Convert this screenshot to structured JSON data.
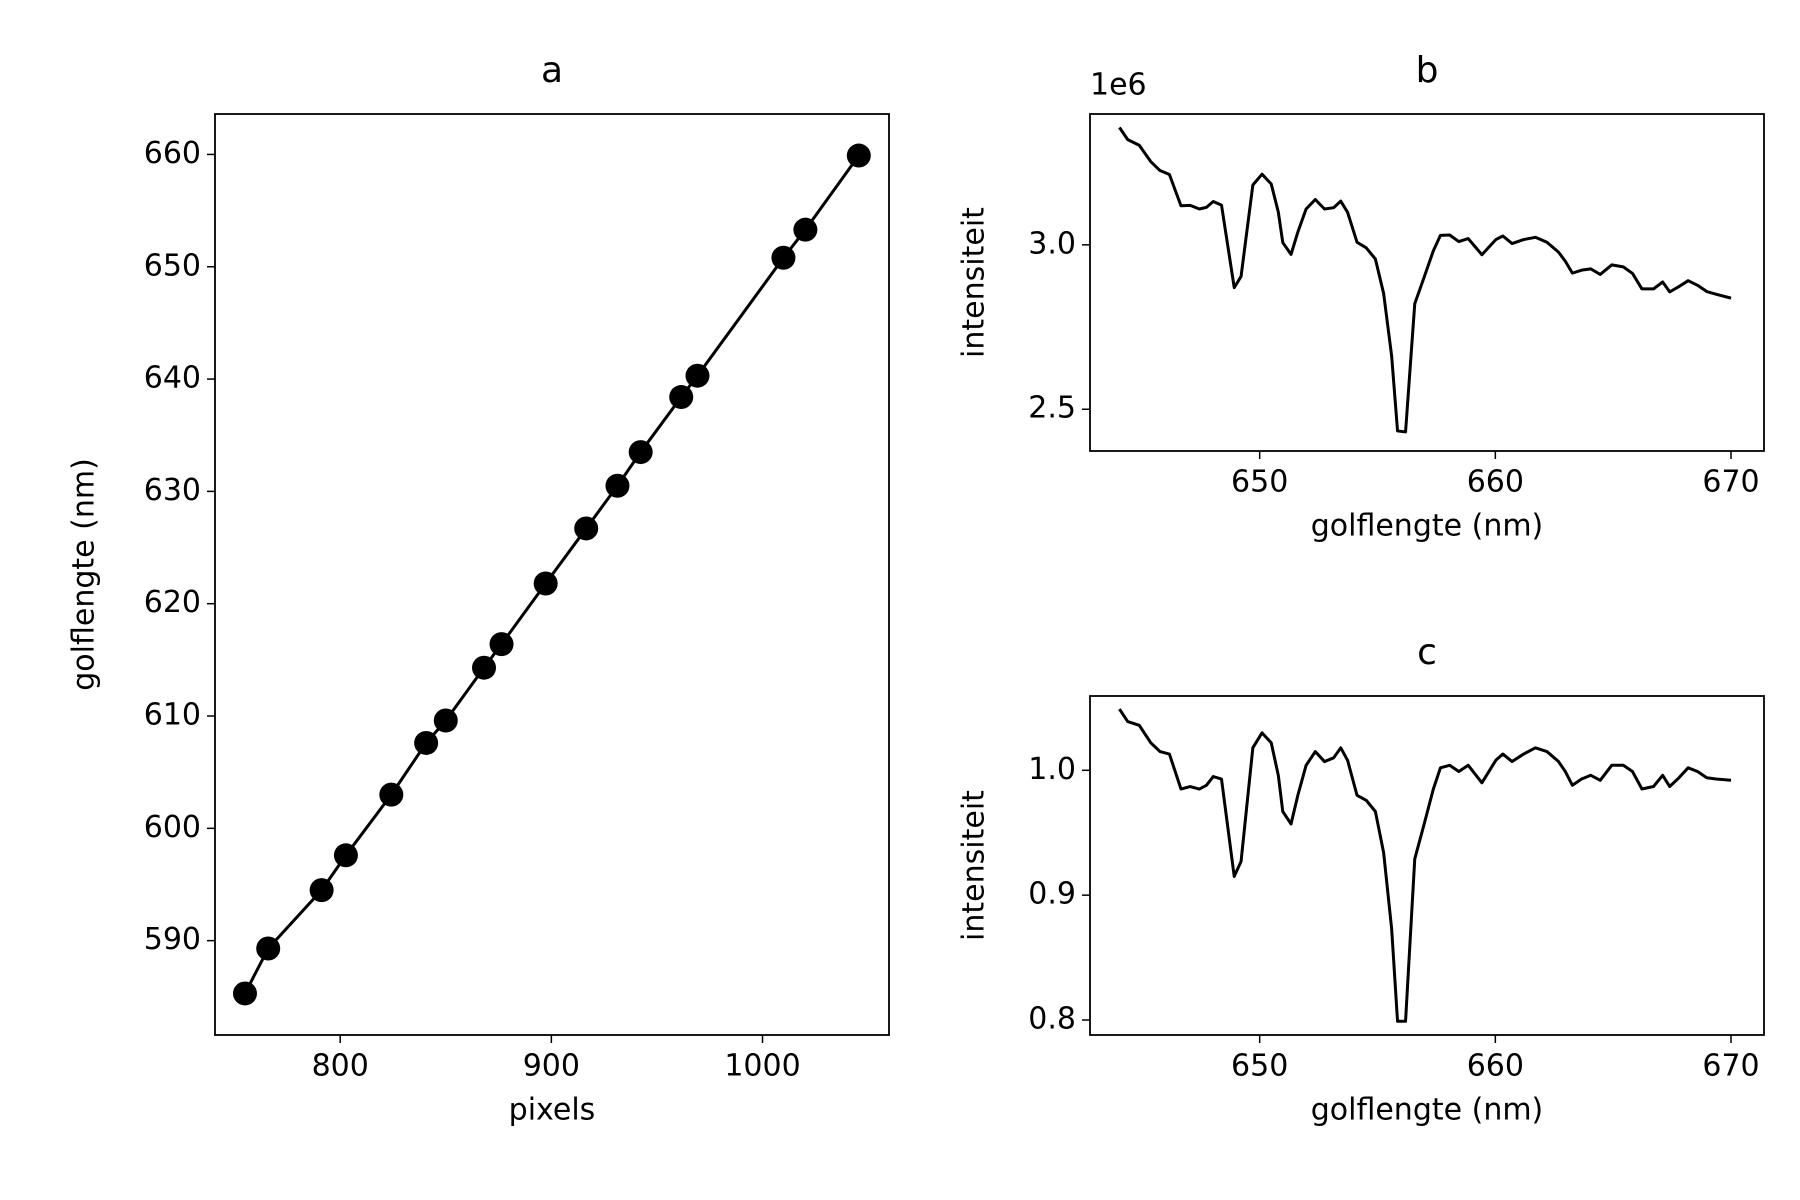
{
  "chart_data": [
    {
      "type": "line",
      "title": "a",
      "xlabel": "pixels",
      "ylabel": "golflengte (nm)",
      "color": "#000000",
      "marker": "o",
      "x": [
        754.9,
        765.9,
        791.2,
        802.7,
        824.2,
        840.7,
        850.0,
        868.1,
        876.4,
        897.3,
        916.5,
        931.3,
        942.3,
        961.5,
        969.2,
        1009.9,
        1020.3,
        1045.6
      ],
      "values": [
        585.3,
        589.3,
        594.5,
        597.6,
        603.0,
        607.6,
        609.6,
        614.3,
        616.4,
        621.8,
        626.7,
        630.5,
        633.5,
        638.4,
        640.3,
        650.8,
        653.3,
        659.9
      ],
      "xlim": [
        740.7,
        1059.9
      ],
      "ylim": [
        581.6,
        663.6
      ],
      "xticks": [
        800,
        900,
        1000
      ],
      "yticks": [
        590,
        600,
        610,
        620,
        630,
        640,
        650,
        660
      ]
    },
    {
      "type": "line",
      "title": "b",
      "xlabel": "golflengte (nm)",
      "ylabel": "intensiteit",
      "offset_label": "1e6",
      "color": "#000000",
      "x": [
        644.05,
        644.4,
        644.89,
        645.38,
        645.77,
        646.17,
        646.66,
        647.05,
        647.44,
        647.74,
        648.03,
        648.38,
        648.92,
        649.21,
        649.71,
        650.1,
        650.49,
        650.79,
        650.98,
        651.33,
        651.62,
        651.97,
        652.36,
        652.75,
        653.14,
        653.44,
        653.73,
        654.13,
        654.52,
        654.91,
        655.26,
        655.6,
        655.85,
        656.19,
        656.58,
        656.98,
        657.37,
        657.67,
        658.06,
        658.45,
        658.85,
        659.43,
        660.02,
        660.32,
        660.71,
        661.2,
        661.7,
        662.19,
        662.68,
        662.97,
        663.27,
        663.66,
        664.05,
        664.45,
        664.94,
        665.43,
        665.82,
        666.22,
        666.71,
        667.1,
        667.4,
        667.79,
        668.18,
        668.58,
        668.97,
        669.36,
        670.0
      ],
      "values": [
        3.357,
        3.32,
        3.303,
        3.253,
        3.226,
        3.214,
        3.119,
        3.12,
        3.109,
        3.114,
        3.132,
        3.121,
        2.87,
        2.904,
        3.182,
        3.215,
        3.185,
        3.1,
        3.007,
        2.971,
        3.039,
        3.109,
        3.138,
        3.109,
        3.113,
        3.133,
        3.099,
        3.008,
        2.991,
        2.957,
        2.852,
        2.662,
        2.434,
        2.431,
        2.821,
        2.902,
        2.982,
        3.029,
        3.03,
        3.01,
        3.019,
        2.97,
        3.016,
        3.027,
        3.004,
        3.016,
        3.023,
        3.008,
        2.978,
        2.95,
        2.914,
        2.923,
        2.927,
        2.91,
        2.939,
        2.933,
        2.913,
        2.866,
        2.866,
        2.887,
        2.857,
        2.873,
        2.891,
        2.877,
        2.858,
        2.85,
        2.838
      ],
      "xlim": [
        642.8,
        671.4
      ],
      "ylim": [
        2.373,
        3.398
      ],
      "xticks": [
        650,
        660,
        670
      ],
      "yticks": [
        2.5,
        {
          "value": 3,
          "label": "3.0"
        }
      ]
    },
    {
      "type": "line",
      "title": "c",
      "xlabel": "golflengte (nm)",
      "ylabel": "intensiteit",
      "color": "#000000",
      "x": [
        644.05,
        644.4,
        644.89,
        645.38,
        645.77,
        646.17,
        646.66,
        647.05,
        647.44,
        647.74,
        648.03,
        648.38,
        648.92,
        649.21,
        649.71,
        650.1,
        650.49,
        650.79,
        650.98,
        651.33,
        651.62,
        651.97,
        652.36,
        652.75,
        653.14,
        653.44,
        653.73,
        654.13,
        654.52,
        654.91,
        655.26,
        655.6,
        655.85,
        656.19,
        656.58,
        656.98,
        657.37,
        657.67,
        658.06,
        658.45,
        658.85,
        659.43,
        660.02,
        660.32,
        660.71,
        661.2,
        661.7,
        662.19,
        662.68,
        662.97,
        663.27,
        663.66,
        664.05,
        664.45,
        664.94,
        665.43,
        665.82,
        666.22,
        666.71,
        667.1,
        667.4,
        667.79,
        668.18,
        668.58,
        668.97,
        669.36,
        670.0
      ],
      "values": [
        1.049,
        1.039,
        1.036,
        1.022,
        1.015,
        1.013,
        0.985,
        0.987,
        0.985,
        0.988,
        0.995,
        0.993,
        0.915,
        0.927,
        1.018,
        1.03,
        1.022,
        0.996,
        0.967,
        0.957,
        0.98,
        1.004,
        1.015,
        1.007,
        1.01,
        1.018,
        1.008,
        0.98,
        0.976,
        0.967,
        0.934,
        0.873,
        0.799,
        0.799,
        0.929,
        0.957,
        0.985,
        1.002,
        1.004,
        0.999,
        1.004,
        0.99,
        1.008,
        1.013,
        1.007,
        1.013,
        1.018,
        1.015,
        1.007,
        0.999,
        0.988,
        0.993,
        0.996,
        0.992,
        1.004,
        1.004,
        0.999,
        0.985,
        0.987,
        0.996,
        0.987,
        0.994,
        1.002,
        0.999,
        0.994,
        0.993,
        0.992
      ],
      "xlim": [
        642.8,
        671.4
      ],
      "ylim": [
        0.788,
        1.0595
      ],
      "xticks": [
        650,
        660,
        670
      ],
      "yticks": [
        0.8,
        0.9,
        {
          "value": 1,
          "label": "1.0"
        }
      ]
    }
  ]
}
